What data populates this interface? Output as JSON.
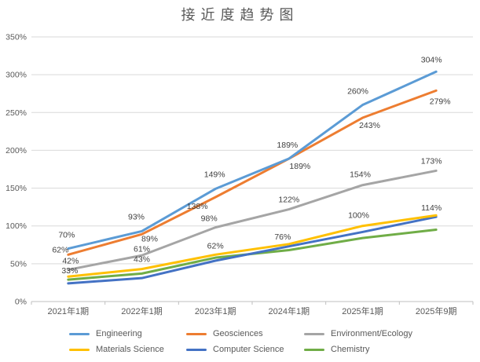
{
  "title": "接近度趋势图",
  "chart_data": {
    "type": "line",
    "title": "接近度趋势图",
    "categories": [
      "2021年1期",
      "2022年1期",
      "2023年1期",
      "2024年1期",
      "2025年1期",
      "2025年9期"
    ],
    "series": [
      {
        "name": "Engineering",
        "color": "#5B9BD5",
        "values": [
          70,
          93,
          149,
          189,
          260,
          304
        ],
        "labels": [
          "70%",
          "93%",
          "149%",
          "189%",
          "260%",
          "304%"
        ]
      },
      {
        "name": "Geosciences",
        "color": "#ED7D31",
        "values": [
          62,
          89,
          138,
          189,
          243,
          279
        ],
        "labels": [
          "62%",
          "89%",
          "138%",
          "189%",
          "243%",
          "279%"
        ]
      },
      {
        "name": "Environment/Ecology",
        "color": "#A5A5A5",
        "values": [
          42,
          61,
          98,
          122,
          154,
          173
        ],
        "labels": [
          "42%",
          "61%",
          "98%",
          "122%",
          "154%",
          "173%"
        ]
      },
      {
        "name": "Materials Science",
        "color": "#FFC000",
        "values": [
          33,
          43,
          62,
          76,
          100,
          114
        ],
        "labels": [
          "33%",
          "43%",
          "62%",
          "76%",
          "100%",
          "114%"
        ]
      },
      {
        "name": "Computer Science",
        "color": "#4472C4",
        "values": [
          24,
          31,
          54,
          73,
          92,
          112
        ],
        "labels": null
      },
      {
        "name": "Chemistry",
        "color": "#70AD47",
        "values": [
          29,
          37,
          58,
          68,
          84,
          95
        ],
        "labels": null
      }
    ],
    "y_ticks": [
      "0%",
      "50%",
      "100%",
      "150%",
      "200%",
      "250%",
      "300%",
      "350%"
    ],
    "ylim": [
      0,
      350
    ],
    "grid": true,
    "legend_position": "bottom"
  },
  "colors": {
    "gridline": "#D9D9D9",
    "axis_line": "#BFBFBF",
    "axis_text": "#595959",
    "data_label_text": "#3F3F3F",
    "title_text": "#595959",
    "background": "#FFFFFF"
  }
}
